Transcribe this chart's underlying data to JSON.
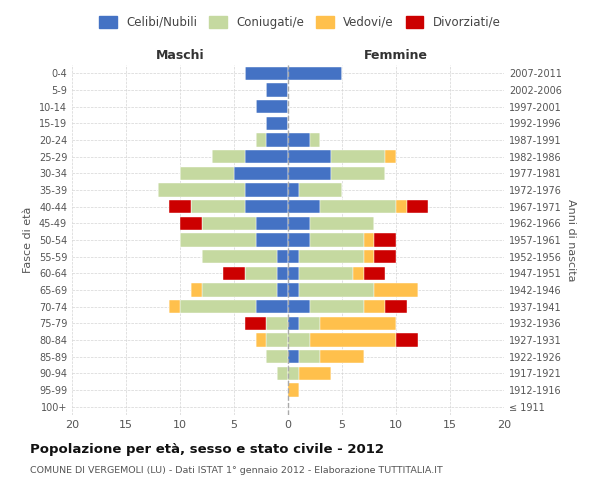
{
  "age_groups": [
    "100+",
    "95-99",
    "90-94",
    "85-89",
    "80-84",
    "75-79",
    "70-74",
    "65-69",
    "60-64",
    "55-59",
    "50-54",
    "45-49",
    "40-44",
    "35-39",
    "30-34",
    "25-29",
    "20-24",
    "15-19",
    "10-14",
    "5-9",
    "0-4"
  ],
  "birth_years": [
    "≤ 1911",
    "1912-1916",
    "1917-1921",
    "1922-1926",
    "1927-1931",
    "1932-1936",
    "1937-1941",
    "1942-1946",
    "1947-1951",
    "1952-1956",
    "1957-1961",
    "1962-1966",
    "1967-1971",
    "1972-1976",
    "1977-1981",
    "1982-1986",
    "1987-1991",
    "1992-1996",
    "1997-2001",
    "2002-2006",
    "2007-2011"
  ],
  "maschi": {
    "celibi": [
      0,
      0,
      0,
      0,
      0,
      0,
      3,
      1,
      1,
      1,
      3,
      3,
      4,
      4,
      5,
      4,
      2,
      2,
      3,
      2,
      4
    ],
    "coniugati": [
      0,
      0,
      1,
      2,
      2,
      2,
      7,
      7,
      3,
      7,
      7,
      5,
      5,
      8,
      5,
      3,
      1,
      0,
      0,
      0,
      0
    ],
    "vedovi": [
      0,
      0,
      0,
      0,
      1,
      0,
      1,
      1,
      0,
      0,
      0,
      0,
      0,
      0,
      0,
      0,
      0,
      0,
      0,
      0,
      0
    ],
    "divorziati": [
      0,
      0,
      0,
      0,
      0,
      2,
      0,
      0,
      2,
      0,
      0,
      2,
      2,
      0,
      0,
      0,
      0,
      0,
      0,
      0,
      0
    ]
  },
  "femmine": {
    "nubili": [
      0,
      0,
      0,
      1,
      0,
      1,
      2,
      1,
      1,
      1,
      2,
      2,
      3,
      1,
      4,
      4,
      2,
      0,
      0,
      0,
      5
    ],
    "coniugate": [
      0,
      0,
      1,
      2,
      2,
      2,
      5,
      7,
      5,
      6,
      5,
      6,
      7,
      4,
      5,
      5,
      1,
      0,
      0,
      0,
      0
    ],
    "vedove": [
      0,
      1,
      3,
      4,
      8,
      7,
      2,
      4,
      1,
      1,
      1,
      0,
      1,
      0,
      0,
      1,
      0,
      0,
      0,
      0,
      0
    ],
    "divorziate": [
      0,
      0,
      0,
      0,
      2,
      0,
      2,
      0,
      2,
      2,
      2,
      0,
      2,
      0,
      0,
      0,
      0,
      0,
      0,
      0,
      0
    ]
  },
  "colors": {
    "celibi": "#4472c4",
    "coniugati": "#c5d9a0",
    "vedovi": "#ffc04c",
    "divorziati": "#cc0000"
  },
  "xlim": 20,
  "title": "Popolazione per età, sesso e stato civile - 2012",
  "subtitle": "COMUNE DI VERGEMOLI (LU) - Dati ISTAT 1° gennaio 2012 - Elaborazione TUTTITALIA.IT",
  "ylabel_left": "Fasce di età",
  "ylabel_right": "Anni di nascita",
  "xlabel_maschi": "Maschi",
  "xlabel_femmine": "Femmine",
  "legend_labels": [
    "Celibi/Nubili",
    "Coniugati/e",
    "Vedovi/e",
    "Divorziati/e"
  ],
  "background_color": "#ffffff",
  "grid_color": "#d0d0d0"
}
